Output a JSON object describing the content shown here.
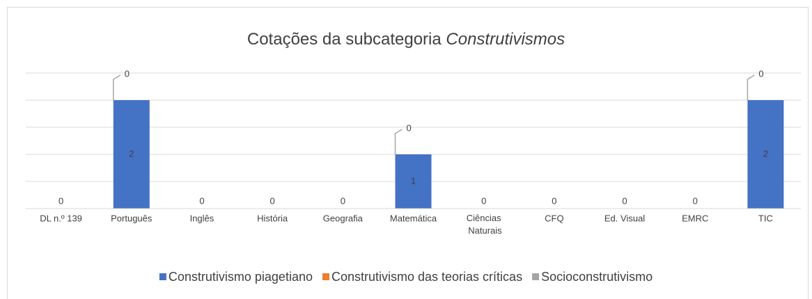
{
  "chart_data": {
    "type": "stacked_bar",
    "title": {
      "text": "Cotações da subcategoria",
      "emphasis": "Construtivismos"
    },
    "categories": [
      "DL n.º 139",
      "Português",
      "Inglês",
      "História",
      "Geografia",
      "Matemática",
      "Ciências Naturais",
      "CFQ",
      "Ed. Visual",
      "EMRC",
      "TIC"
    ],
    "series": [
      {
        "name": "Construtivismo piagetiano",
        "color": "#4472c4",
        "values": [
          0,
          2,
          0,
          0,
          0,
          1,
          0,
          0,
          0,
          0,
          2
        ]
      },
      {
        "name": "Construtivismo das teorias críticas",
        "color": "#ed7d31",
        "values": [
          0,
          0,
          0,
          0,
          0,
          0,
          0,
          0,
          0,
          0,
          0
        ]
      },
      {
        "name": "Socioconstrutivismo",
        "color": "#a5a5a5",
        "values": [
          0,
          0,
          0,
          0,
          0,
          0,
          0,
          0,
          0,
          0,
          0
        ]
      }
    ],
    "ylim": [
      0,
      2.5
    ],
    "yticks": [
      0,
      0.5,
      1,
      1.5,
      2,
      2.5
    ],
    "grid": true,
    "legend": "bottom"
  }
}
